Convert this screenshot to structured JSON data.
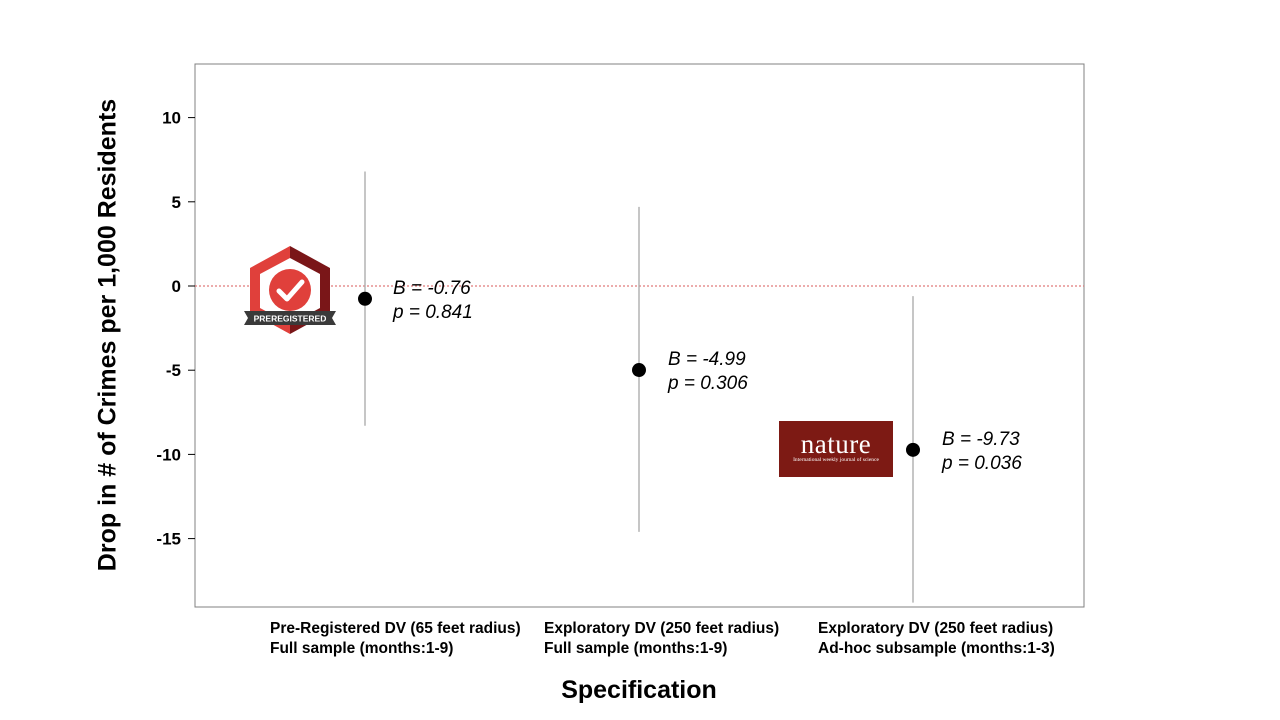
{
  "chart_data": {
    "type": "scatter",
    "title": "",
    "xlabel": "Specification",
    "ylabel": "Drop in # of Crimes per 1,000 Residents",
    "ylim": [
      -19,
      13
    ],
    "yticks": [
      10,
      5,
      0,
      -5,
      -10,
      -15
    ],
    "ytick_labels": [
      "10",
      "5",
      "0",
      "-5",
      "-10",
      "-15"
    ],
    "reference_line": {
      "y": 0,
      "color": "#e07b7b",
      "style": "dotted"
    },
    "grid": false,
    "categories": [
      {
        "line1": "Pre-Registered DV (65 feet radius)",
        "line2": "Full sample (months:1-9)"
      },
      {
        "line1": "Exploratory DV (250 feet radius)",
        "line2": "Full sample (months:1-9)"
      },
      {
        "line1": "Exploratory DV (250 feet radius)",
        "line2": "Ad-hoc subsample (months:1-3)"
      }
    ],
    "points": [
      {
        "estimate": -0.76,
        "ci_low": -8.3,
        "ci_high": 6.8,
        "label_b": "B = -0.76",
        "label_p": "p = 0.841"
      },
      {
        "estimate": -4.99,
        "ci_low": -14.6,
        "ci_high": 4.7,
        "label_b": "B = -4.99",
        "label_p": "p = 0.306"
      },
      {
        "estimate": -9.73,
        "ci_low": -18.8,
        "ci_high": -0.6,
        "label_b": "B = -9.73",
        "label_p": "p = 0.036"
      }
    ]
  },
  "badges": {
    "preregistered": {
      "text": "PREREGISTERED",
      "color": "#e0403b",
      "dark": "#7a1618"
    },
    "nature": {
      "name": "nature",
      "tagline": "International weekly journal of science",
      "color": "#7d1a14"
    }
  }
}
